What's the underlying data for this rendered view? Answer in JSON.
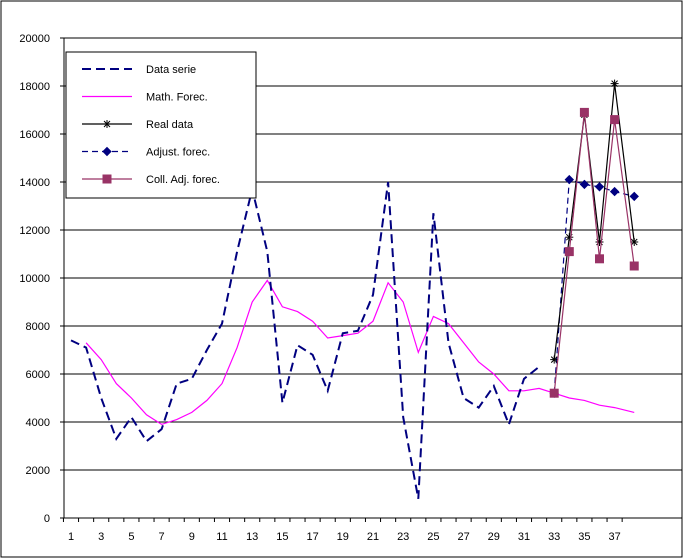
{
  "chart_data": {
    "type": "line",
    "title": "",
    "xlabel": "",
    "ylabel": "",
    "ylim": [
      0,
      20000
    ],
    "yticks": [
      0,
      2000,
      4000,
      6000,
      8000,
      10000,
      12000,
      14000,
      16000,
      18000,
      20000
    ],
    "xticks": [
      1,
      3,
      5,
      7,
      9,
      11,
      13,
      15,
      17,
      19,
      21,
      23,
      25,
      27,
      29,
      31,
      33,
      35,
      37
    ],
    "xlim": [
      1,
      38.3
    ],
    "grid": "horizontal",
    "legend_position": "top-left",
    "series": [
      {
        "name": "Data serie",
        "color": "#000080",
        "style": "dashed",
        "marker": "none",
        "x": [
          1,
          2,
          3,
          4,
          5,
          6,
          7,
          8,
          9,
          10,
          11,
          12,
          13,
          14,
          15,
          16,
          17,
          18,
          19,
          20,
          21,
          22,
          23,
          24,
          25,
          26,
          27,
          28,
          29,
          30,
          31,
          32
        ],
        "y": [
          7400,
          7100,
          5000,
          3300,
          4200,
          3200,
          3700,
          5600,
          5800,
          7000,
          8100,
          11100,
          13700,
          11100,
          4800,
          7200,
          6800,
          5300,
          7700,
          7800,
          9300,
          14000,
          4200,
          800,
          12700,
          7300,
          5000,
          4600,
          5500,
          3900,
          5800,
          6300
        ]
      },
      {
        "name": "Math. Forec.",
        "color": "#ff00ff",
        "style": "solid",
        "marker": "none",
        "x": [
          2,
          3,
          4,
          5,
          6,
          7,
          8,
          9,
          10,
          11,
          12,
          13,
          14,
          15,
          16,
          17,
          18,
          19,
          20,
          21,
          22,
          23,
          24,
          25,
          26,
          27,
          28,
          29,
          30,
          31,
          32,
          33,
          34,
          35,
          36,
          37,
          38.3
        ],
        "y": [
          7300,
          6600,
          5600,
          5000,
          4300,
          3900,
          4100,
          4400,
          4900,
          5600,
          7100,
          9000,
          9900,
          8800,
          8600,
          8200,
          7500,
          7600,
          7700,
          8200,
          9800,
          9000,
          6900,
          8400,
          8100,
          7300,
          6500,
          6000,
          5300,
          5300,
          5400,
          5200,
          5000,
          4900,
          4700,
          4600,
          4400
        ]
      },
      {
        "name": "Real data",
        "color": "#000000",
        "style": "solid",
        "marker": "asterisk",
        "x": [
          33,
          34,
          35,
          36,
          37,
          38.3
        ],
        "y": [
          6600,
          11700,
          16800,
          11500,
          18100,
          11500
        ]
      },
      {
        "name": "Adjust. forec.",
        "color": "#000080",
        "style": "dashed",
        "marker": "diamond",
        "x": [
          33,
          34,
          35,
          36,
          37,
          38.3
        ],
        "y": [
          5200,
          14100,
          13900,
          13800,
          13600,
          13400
        ]
      },
      {
        "name": "Coll. Adj. forec.",
        "color": "#993366",
        "style": "solid",
        "marker": "square",
        "x": [
          33,
          34,
          35,
          36,
          37,
          38.3
        ],
        "y": [
          5200,
          11100,
          16900,
          10800,
          16600,
          10500
        ]
      }
    ]
  }
}
